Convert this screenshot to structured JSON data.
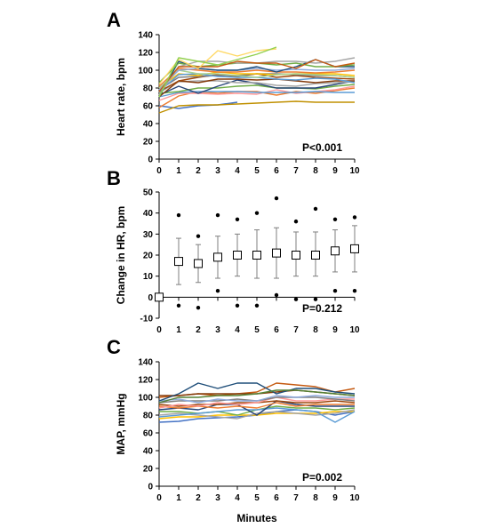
{
  "chart_data": [
    {
      "panel": "A",
      "type": "line",
      "ylabel": "Heart rate, bpm",
      "xlabel": "",
      "ylim": [
        0,
        140
      ],
      "yticks": [
        0,
        20,
        40,
        60,
        80,
        100,
        120,
        140
      ],
      "xlim": [
        0,
        10
      ],
      "xticks": [
        0,
        1,
        2,
        3,
        4,
        5,
        6,
        7,
        8,
        9,
        10
      ],
      "annotation": "P<0.001",
      "series": [
        {
          "color": "#4472c4",
          "values": [
            60,
            57,
            60,
            61,
            64,
            null,
            null,
            null,
            null,
            null,
            null
          ]
        },
        {
          "color": "#c09000",
          "values": [
            52,
            60,
            61,
            61,
            62,
            63,
            64,
            65,
            64,
            64,
            64
          ]
        },
        {
          "color": "#ed7d31",
          "values": [
            58,
            71,
            76,
            74,
            76,
            76,
            72,
            76,
            74,
            77,
            80
          ]
        },
        {
          "color": "#ff9999",
          "values": [
            66,
            74,
            74,
            73,
            74,
            73,
            78,
            74,
            76,
            78,
            82
          ]
        },
        {
          "color": "#5b9bd5",
          "values": [
            70,
            75,
            76,
            76,
            76,
            75,
            75,
            75,
            76,
            75,
            75
          ]
        },
        {
          "color": "#70ad47",
          "values": [
            74,
            76,
            80,
            80,
            82,
            83,
            80,
            80,
            79,
            82,
            84
          ]
        },
        {
          "color": "#264478",
          "values": [
            72,
            82,
            74,
            82,
            89,
            85,
            80,
            80,
            80,
            84,
            88
          ]
        },
        {
          "color": "#a5a5a5",
          "values": [
            75,
            87,
            88,
            88,
            86,
            86,
            83,
            82,
            85,
            86,
            87
          ]
        },
        {
          "color": "#843c0c",
          "values": [
            70,
            88,
            86,
            90,
            90,
            89,
            90,
            88,
            86,
            88,
            88
          ]
        },
        {
          "color": "#9e480e",
          "values": [
            76,
            88,
            92,
            95,
            93,
            96,
            92,
            94,
            92,
            91,
            90
          ]
        },
        {
          "color": "#7f7f7f",
          "values": [
            78,
            92,
            93,
            94,
            94,
            96,
            96,
            95,
            94,
            94,
            92
          ]
        },
        {
          "color": "#ffc000",
          "values": [
            80,
            96,
            94,
            98,
            96,
            96,
            95,
            96,
            96,
            96,
            94
          ]
        },
        {
          "color": "#5b9bd5",
          "values": [
            76,
            95,
            96,
            93,
            92,
            92,
            90,
            89,
            91,
            90,
            86
          ]
        },
        {
          "color": "#a9d18e",
          "values": [
            80,
            100,
            96,
            96,
            94,
            92,
            95,
            96,
            95,
            94,
            92
          ]
        },
        {
          "color": "#ed7d31",
          "values": [
            82,
            102,
            100,
            98,
            98,
            100,
            98,
            98,
            97,
            98,
            100
          ]
        },
        {
          "color": "#8faadc",
          "values": [
            78,
            100,
            102,
            100,
            100,
            102,
            100,
            101,
            100,
            100,
            102
          ]
        },
        {
          "color": "#1f4e79",
          "values": [
            70,
            110,
            102,
            100,
            100,
            104,
            98,
            104,
            112,
            104,
            104
          ]
        },
        {
          "color": "#70ad47",
          "values": [
            86,
            108,
            104,
            106,
            108,
            108,
            106,
            108,
            104,
            104,
            106
          ]
        },
        {
          "color": "#a5a5a5",
          "values": [
            72,
            104,
            110,
            110,
            108,
            108,
            110,
            110,
            108,
            110,
            114
          ]
        },
        {
          "color": "#c55a11",
          "values": [
            76,
            104,
            104,
            104,
            110,
            108,
            108,
            102,
            112,
            104,
            108
          ]
        },
        {
          "color": "#ffd966",
          "values": [
            84,
            112,
            102,
            122,
            116,
            122,
            124,
            null,
            null,
            null,
            null
          ]
        },
        {
          "color": "#92d050",
          "values": [
            70,
            114,
            110,
            106,
            112,
            118,
            126,
            null,
            null,
            null,
            null
          ]
        }
      ]
    },
    {
      "panel": "B",
      "type": "scatter",
      "ylabel": "Change in HR, bpm",
      "xlabel": "",
      "ylim": [
        -10,
        50
      ],
      "yticks": [
        -10,
        0,
        10,
        20,
        30,
        40,
        50
      ],
      "xlim": [
        0,
        10
      ],
      "xticks": [
        0,
        1,
        2,
        3,
        4,
        5,
        6,
        7,
        8,
        9,
        10
      ],
      "annotation": "P=0.212",
      "x": [
        0,
        1,
        2,
        3,
        4,
        5,
        6,
        7,
        8,
        9,
        10
      ],
      "mean": [
        0,
        17,
        16,
        19,
        20,
        20,
        21,
        20,
        20,
        22,
        23
      ],
      "sd_low": [
        null,
        6,
        7,
        9,
        10,
        9,
        9,
        10,
        10,
        12,
        12
      ],
      "sd_high": [
        null,
        28,
        25,
        29,
        30,
        32,
        33,
        31,
        31,
        32,
        34
      ],
      "max": [
        null,
        39,
        29,
        39,
        37,
        40,
        47,
        36,
        42,
        37,
        38
      ],
      "min": [
        null,
        -4,
        -5,
        3,
        -4,
        -4,
        1,
        -1,
        -1,
        3,
        3
      ]
    },
    {
      "panel": "C",
      "type": "line",
      "ylabel": "MAP, mmHg",
      "xlabel": "Minutes",
      "ylim": [
        0,
        140
      ],
      "yticks": [
        0,
        20,
        40,
        60,
        80,
        100,
        120,
        140
      ],
      "xlim": [
        0,
        10
      ],
      "xticks": [
        0,
        1,
        2,
        3,
        4,
        5,
        6,
        7,
        8,
        9,
        10
      ],
      "annotation": "P=0.002",
      "series": [
        {
          "color": "#4472c4",
          "values": [
            72,
            73,
            76,
            77,
            78,
            80,
            84,
            86,
            84,
            80,
            84
          ]
        },
        {
          "color": "#ffc000",
          "values": [
            76,
            78,
            78,
            80,
            80,
            80,
            82,
            82,
            82,
            84,
            84
          ]
        },
        {
          "color": "#a5a5a5",
          "values": [
            80,
            82,
            80,
            78,
            76,
            82,
            84,
            82,
            80,
            82,
            86
          ]
        },
        {
          "color": "#70ad47",
          "values": [
            84,
            84,
            82,
            84,
            80,
            86,
            90,
            88,
            88,
            86,
            88
          ]
        },
        {
          "color": "#5b9bd5",
          "values": [
            78,
            80,
            82,
            84,
            86,
            86,
            88,
            86,
            84,
            72,
            84
          ]
        },
        {
          "color": "#264478",
          "values": [
            86,
            88,
            86,
            92,
            92,
            80,
            96,
            92,
            90,
            90,
            90
          ]
        },
        {
          "color": "#ed7d31",
          "values": [
            90,
            88,
            90,
            88,
            90,
            88,
            94,
            90,
            92,
            92,
            92
          ]
        },
        {
          "color": "#9e480e",
          "values": [
            92,
            90,
            92,
            92,
            94,
            94,
            96,
            94,
            94,
            96,
            94
          ]
        },
        {
          "color": "#ff9999",
          "values": [
            88,
            92,
            90,
            94,
            92,
            94,
            100,
            96,
            96,
            98,
            98
          ]
        },
        {
          "color": "#7f7f7f",
          "values": [
            94,
            96,
            96,
            96,
            98,
            96,
            100,
            100,
            100,
            98,
            96
          ]
        },
        {
          "color": "#8faadc",
          "values": [
            96,
            98,
            94,
            98,
            96,
            96,
            102,
            100,
            102,
            100,
            100
          ]
        },
        {
          "color": "#c55a11",
          "values": [
            100,
            102,
            104,
            102,
            104,
            106,
            116,
            114,
            112,
            106,
            110
          ]
        },
        {
          "color": "#843c0c",
          "values": [
            102,
            102,
            104,
            104,
            104,
            104,
            106,
            108,
            106,
            104,
            102
          ]
        },
        {
          "color": "#1f4e79",
          "values": [
            96,
            104,
            116,
            110,
            116,
            116,
            104,
            110,
            110,
            106,
            104
          ]
        },
        {
          "color": "#548235",
          "values": [
            94,
            100,
            100,
            102,
            102,
            104,
            108,
            108,
            106,
            104,
            102
          ]
        }
      ]
    }
  ]
}
